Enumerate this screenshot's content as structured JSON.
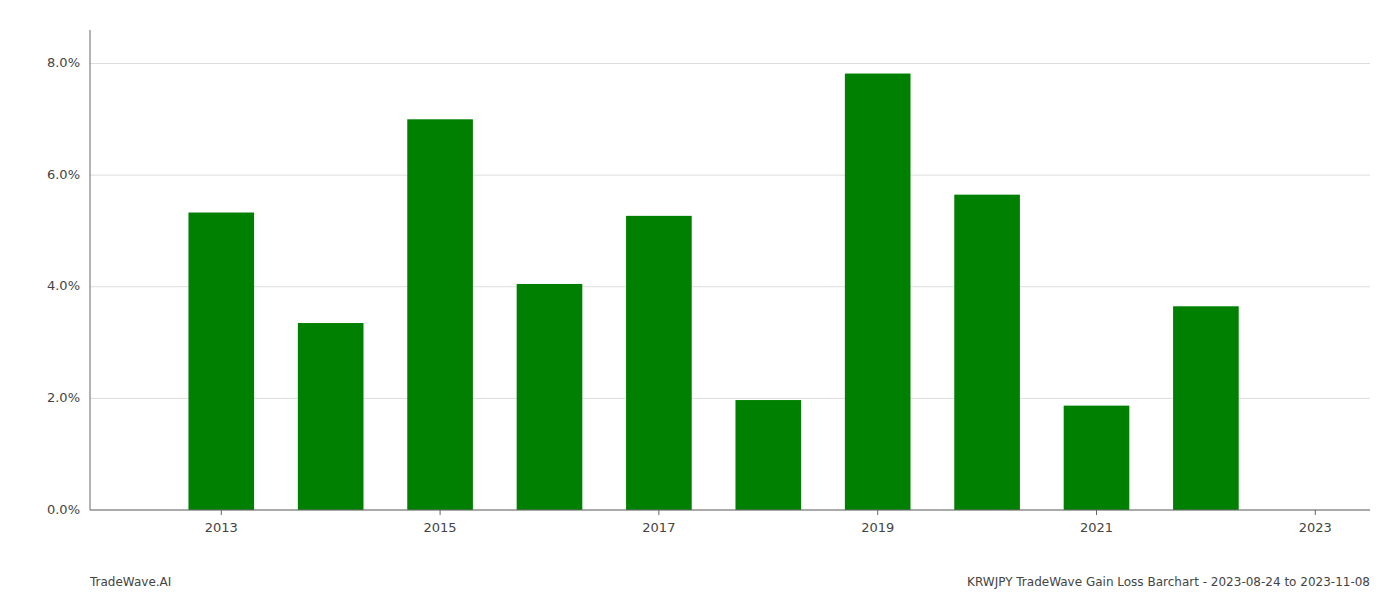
{
  "chart_data": {
    "type": "bar",
    "x": [
      2013,
      2014,
      2015,
      2016,
      2017,
      2018,
      2019,
      2020,
      2021,
      2022
    ],
    "values": [
      0.0533,
      0.0335,
      0.07,
      0.0405,
      0.0527,
      0.0197,
      0.0782,
      0.0565,
      0.0187,
      0.0365
    ],
    "color": "#008000",
    "xlim": [
      2011.8,
      2023.5
    ],
    "xticks": [
      2013,
      2015,
      2017,
      2019,
      2021,
      2023
    ],
    "ylim": [
      0,
      0.086
    ],
    "yticks": [
      {
        "value": 0.0,
        "label": "0.0%"
      },
      {
        "value": 0.02,
        "label": "2.0%"
      },
      {
        "value": 0.04,
        "label": "4.0%"
      },
      {
        "value": 0.06,
        "label": "6.0%"
      },
      {
        "value": 0.08,
        "label": "8.0%"
      }
    ],
    "grid": true,
    "annotations": [
      "TradeWave.AI",
      "KRWJPY TradeWave Gain Loss Barchart - 2023-08-24 to 2023-11-08"
    ]
  }
}
